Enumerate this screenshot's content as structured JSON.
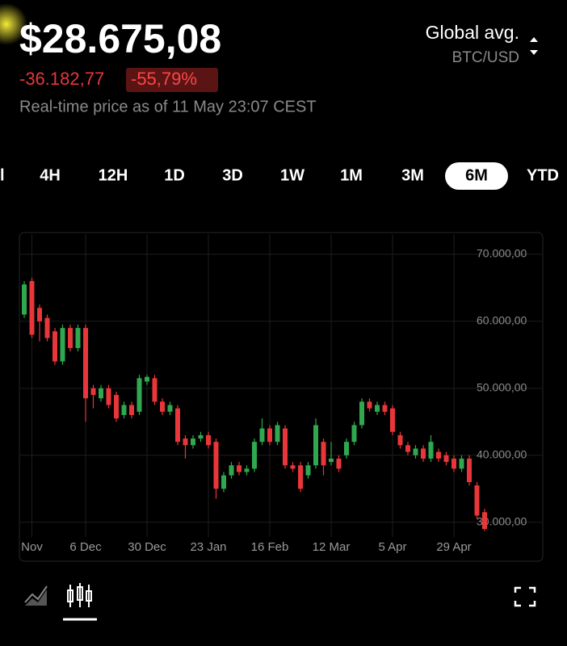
{
  "header": {
    "price": "$28.675,08",
    "change": "-36.182,77",
    "change_pct": "-55,79%",
    "realtime": "Real-time price as of 11 May 23:07 CEST"
  },
  "source": {
    "name": "Global avg.",
    "pair": "BTC/USD"
  },
  "timeframes": {
    "items": [
      "4H",
      "12H",
      "1D",
      "3D",
      "1W",
      "1M",
      "3M",
      "6M",
      "YTD"
    ],
    "selected": "6M"
  },
  "chart_data": {
    "type": "candlestick",
    "categories": [
      null,
      "Nov",
      null,
      null,
      null,
      null,
      null,
      null,
      "6 Dec",
      null,
      null,
      null,
      null,
      null,
      null,
      null,
      "30 Dec",
      null,
      null,
      null,
      null,
      null,
      null,
      null,
      "23 Jan",
      null,
      null,
      null,
      null,
      null,
      null,
      null,
      "16 Feb",
      null,
      null,
      null,
      null,
      null,
      null,
      null,
      "12 Mar",
      null,
      null,
      null,
      null,
      null,
      null,
      null,
      "5 Apr",
      null,
      null,
      null,
      null,
      null,
      null,
      null,
      "29 Apr",
      null,
      null,
      null,
      null
    ],
    "open": [
      61000,
      66000,
      62000,
      60500,
      58500,
      54000,
      59000,
      56000,
      59000,
      50000,
      48500,
      50000,
      49000,
      46000,
      47500,
      46500,
      51000,
      51500,
      48000,
      46500,
      47000,
      42500,
      41500,
      42500,
      43000,
      42000,
      35000,
      37000,
      38500,
      37500,
      38000,
      42000,
      44000,
      42000,
      44000,
      38500,
      38500,
      37000,
      38500,
      42000,
      39000,
      39500,
      40000,
      42000,
      44500,
      48000,
      46500,
      47500,
      47000,
      43000,
      41500,
      40000,
      41000,
      39500,
      40500,
      40000,
      39500,
      38000,
      39500,
      35500,
      31500
    ],
    "high": [
      66000,
      66500,
      62500,
      61000,
      59000,
      59500,
      59500,
      59500,
      59500,
      50500,
      50500,
      50500,
      49500,
      48000,
      48000,
      52000,
      52000,
      52000,
      48500,
      48000,
      47500,
      43000,
      43000,
      43500,
      43500,
      42500,
      37500,
      39000,
      39000,
      38500,
      42500,
      45500,
      44500,
      45000,
      44500,
      39000,
      39000,
      39000,
      45500,
      42500,
      42000,
      40000,
      42500,
      45000,
      48500,
      48500,
      48000,
      48000,
      47500,
      43500,
      42000,
      41500,
      41500,
      43000,
      41000,
      40500,
      40000,
      40000,
      40000,
      36000,
      32000
    ],
    "low": [
      60500,
      57500,
      57000,
      57000,
      53500,
      53500,
      55500,
      55500,
      45000,
      47000,
      48000,
      47000,
      45000,
      45500,
      45500,
      46000,
      50500,
      47500,
      46000,
      46000,
      41500,
      39500,
      41000,
      42000,
      41000,
      33500,
      34500,
      36500,
      37000,
      37000,
      37500,
      41500,
      41500,
      41500,
      38000,
      37500,
      34500,
      36500,
      38000,
      37000,
      38500,
      37500,
      39500,
      41500,
      44000,
      46500,
      46000,
      46000,
      43000,
      41000,
      40000,
      39500,
      39000,
      39000,
      39000,
      38500,
      37500,
      37500,
      35500,
      30500,
      28700
    ],
    "close": [
      65500,
      58000,
      60000,
      57500,
      54000,
      59000,
      56000,
      59000,
      48500,
      49000,
      50000,
      47500,
      45500,
      47500,
      46000,
      51500,
      51700,
      48000,
      46500,
      47500,
      42000,
      41500,
      42500,
      43000,
      41500,
      35000,
      37000,
      38500,
      37500,
      38000,
      42000,
      44000,
      42000,
      44500,
      38500,
      38000,
      35000,
      38500,
      44500,
      38500,
      39500,
      38000,
      42000,
      44500,
      48000,
      47000,
      47500,
      46500,
      43500,
      41500,
      40500,
      41000,
      39500,
      42000,
      39500,
      39000,
      38000,
      39500,
      36000,
      31000,
      29000
    ],
    "up_color": "#2fa84f",
    "down_color": "#e8363a",
    "ylim": [
      27800,
      73000
    ],
    "yticks": [
      {
        "value": 30000,
        "label": "30.000,00"
      },
      {
        "value": 40000,
        "label": "40.000,00"
      },
      {
        "value": 50000,
        "label": "50.000,00"
      },
      {
        "value": 60000,
        "label": "60.000,00"
      },
      {
        "value": 70000,
        "label": "70.000,00"
      }
    ],
    "grid": true
  }
}
